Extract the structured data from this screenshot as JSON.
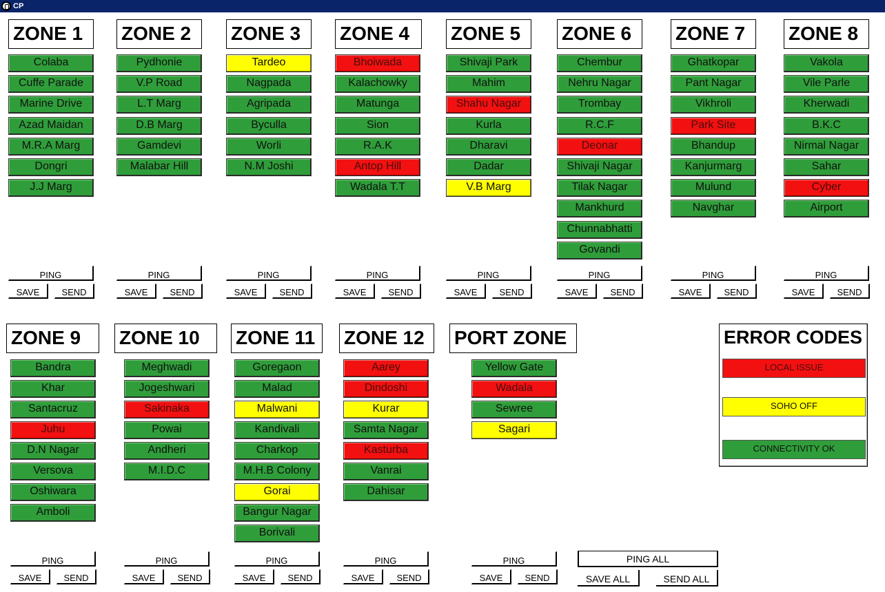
{
  "window": {
    "title": "CP",
    "icon": "app-icon"
  },
  "colors": {
    "green": "#2f9e3a",
    "red": "#f21010",
    "yellow": "#ffff00"
  },
  "buttons": {
    "ping": "PING",
    "save": "SAVE",
    "send": "SEND",
    "ping_all": "PING ALL",
    "save_all": "SAVE ALL",
    "send_all": "SEND ALL"
  },
  "zones": [
    {
      "title": "ZONE 1",
      "locations": [
        {
          "name": "Colaba",
          "status": "green"
        },
        {
          "name": "Cuffe Parade",
          "status": "green"
        },
        {
          "name": "Marine Drive",
          "status": "green"
        },
        {
          "name": "Azad Maidan",
          "status": "green"
        },
        {
          "name": "M.R.A Marg",
          "status": "green"
        },
        {
          "name": "Dongri",
          "status": "green"
        },
        {
          "name": "J.J Marg",
          "status": "green"
        }
      ]
    },
    {
      "title": "ZONE 2",
      "locations": [
        {
          "name": "Pydhonie",
          "status": "green"
        },
        {
          "name": "V.P Road",
          "status": "green"
        },
        {
          "name": "L.T Marg",
          "status": "green"
        },
        {
          "name": "D.B Marg",
          "status": "green"
        },
        {
          "name": "Gamdevi",
          "status": "green"
        },
        {
          "name": "Malabar Hill",
          "status": "green"
        }
      ]
    },
    {
      "title": "ZONE 3",
      "locations": [
        {
          "name": "Tardeo",
          "status": "yellow"
        },
        {
          "name": "Nagpada",
          "status": "green"
        },
        {
          "name": "Agripada",
          "status": "green"
        },
        {
          "name": "Byculla",
          "status": "green"
        },
        {
          "name": "Worli",
          "status": "green"
        },
        {
          "name": "N.M Joshi",
          "status": "green"
        }
      ]
    },
    {
      "title": "ZONE 4",
      "locations": [
        {
          "name": "Bhoiwada",
          "status": "red"
        },
        {
          "name": "Kalachowky",
          "status": "green"
        },
        {
          "name": "Matunga",
          "status": "green"
        },
        {
          "name": "Sion",
          "status": "green"
        },
        {
          "name": "R.A.K",
          "status": "green"
        },
        {
          "name": "Antop Hill",
          "status": "red"
        },
        {
          "name": "Wadala T.T",
          "status": "green"
        }
      ]
    },
    {
      "title": "ZONE 5",
      "locations": [
        {
          "name": "Shivaji Park",
          "status": "green"
        },
        {
          "name": "Mahim",
          "status": "green"
        },
        {
          "name": "Shahu Nagar",
          "status": "red"
        },
        {
          "name": "Kurla",
          "status": "green"
        },
        {
          "name": "Dharavi",
          "status": "green"
        },
        {
          "name": "Dadar",
          "status": "green"
        },
        {
          "name": "V.B Marg",
          "status": "yellow"
        }
      ]
    },
    {
      "title": "ZONE 6",
      "locations": [
        {
          "name": "Chembur",
          "status": "green"
        },
        {
          "name": "Nehru Nagar",
          "status": "green"
        },
        {
          "name": "Trombay",
          "status": "green"
        },
        {
          "name": "R.C.F",
          "status": "green"
        },
        {
          "name": "Deonar",
          "status": "red"
        },
        {
          "name": "Shivaji Nagar",
          "status": "green"
        },
        {
          "name": "Tilak Nagar",
          "status": "green"
        },
        {
          "name": "Mankhurd",
          "status": "green"
        },
        {
          "name": "Chunnabhatti",
          "status": "green"
        },
        {
          "name": "Govandi",
          "status": "green"
        }
      ]
    },
    {
      "title": "ZONE 7",
      "locations": [
        {
          "name": "Ghatkopar",
          "status": "green"
        },
        {
          "name": "Pant Nagar",
          "status": "green"
        },
        {
          "name": "Vikhroli",
          "status": "green"
        },
        {
          "name": "Park Site",
          "status": "red"
        },
        {
          "name": "Bhandup",
          "status": "green"
        },
        {
          "name": "Kanjurmarg",
          "status": "green"
        },
        {
          "name": "Mulund",
          "status": "green"
        },
        {
          "name": "Navghar",
          "status": "green"
        }
      ]
    },
    {
      "title": "ZONE 8",
      "locations": [
        {
          "name": "Vakola",
          "status": "green"
        },
        {
          "name": "Vile Parle",
          "status": "green"
        },
        {
          "name": "Kherwadi",
          "status": "green"
        },
        {
          "name": "B.K.C",
          "status": "green"
        },
        {
          "name": "Nirmal Nagar",
          "status": "green"
        },
        {
          "name": "Sahar",
          "status": "green"
        },
        {
          "name": "Cyber",
          "status": "red"
        },
        {
          "name": "Airport",
          "status": "green"
        }
      ]
    },
    {
      "title": "ZONE 9",
      "locations": [
        {
          "name": "Bandra",
          "status": "green"
        },
        {
          "name": "Khar",
          "status": "green"
        },
        {
          "name": "Santacruz",
          "status": "green"
        },
        {
          "name": "Juhu",
          "status": "red"
        },
        {
          "name": "D.N Nagar",
          "status": "green"
        },
        {
          "name": "Versova",
          "status": "green"
        },
        {
          "name": "Oshiwara",
          "status": "green"
        },
        {
          "name": "Amboli",
          "status": "green"
        }
      ]
    },
    {
      "title": "ZONE 10",
      "locations": [
        {
          "name": "Meghwadi",
          "status": "green"
        },
        {
          "name": "Jogeshwari",
          "status": "green"
        },
        {
          "name": "Sakinaka",
          "status": "red"
        },
        {
          "name": "Powai",
          "status": "green"
        },
        {
          "name": "Andheri",
          "status": "green"
        },
        {
          "name": "M.I.D.C",
          "status": "green"
        }
      ]
    },
    {
      "title": "ZONE 11",
      "locations": [
        {
          "name": "Goregaon",
          "status": "green"
        },
        {
          "name": "Malad",
          "status": "green"
        },
        {
          "name": "Malwani",
          "status": "yellow"
        },
        {
          "name": "Kandivali",
          "status": "green"
        },
        {
          "name": "Charkop",
          "status": "green"
        },
        {
          "name": "M.H.B Colony",
          "status": "green"
        },
        {
          "name": "Gorai",
          "status": "yellow"
        },
        {
          "name": "Bangur Nagar",
          "status": "green"
        },
        {
          "name": "Borivali",
          "status": "green"
        }
      ]
    },
    {
      "title": "ZONE 12",
      "locations": [
        {
          "name": "Aarey",
          "status": "red"
        },
        {
          "name": "Dindoshi",
          "status": "red"
        },
        {
          "name": "Kurar",
          "status": "yellow"
        },
        {
          "name": "Samta Nagar",
          "status": "green"
        },
        {
          "name": "Kasturba",
          "status": "red"
        },
        {
          "name": "Vanrai",
          "status": "green"
        },
        {
          "name": "Dahisar",
          "status": "green"
        }
      ]
    },
    {
      "title": "PORT ZONE",
      "locations": [
        {
          "name": "Yellow Gate",
          "status": "green"
        },
        {
          "name": "Wadala",
          "status": "red"
        },
        {
          "name": "Sewree",
          "status": "green"
        },
        {
          "name": "Sagari",
          "status": "yellow"
        }
      ]
    }
  ],
  "error_codes": {
    "title": "ERROR CODES",
    "items": [
      {
        "label": "LOCAL ISSUE",
        "status": "red"
      },
      {
        "label": "SOHO OFF",
        "status": "yellow"
      },
      {
        "label": "CONNECTIVITY OK",
        "status": "green"
      }
    ]
  }
}
